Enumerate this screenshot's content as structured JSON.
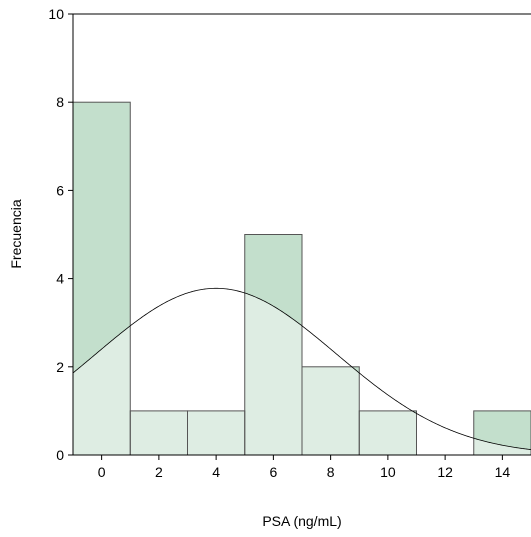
{
  "chart_data": {
    "type": "bar",
    "xlabel": "PSA (ng/mL)",
    "ylabel": "Frecuencia",
    "xlim": [
      -1,
      15
    ],
    "ylim": [
      0,
      10
    ],
    "xticks": [
      0,
      2,
      4,
      6,
      8,
      10,
      12,
      14
    ],
    "yticks": [
      0,
      2,
      4,
      6,
      8,
      10
    ],
    "bins": [
      {
        "start": -1,
        "end": 1,
        "count": 8
      },
      {
        "start": 1,
        "end": 3,
        "count": 1
      },
      {
        "start": 3,
        "end": 5,
        "count": 1
      },
      {
        "start": 5,
        "end": 7,
        "count": 5
      },
      {
        "start": 7,
        "end": 9,
        "count": 2
      },
      {
        "start": 9,
        "end": 11,
        "count": 1
      },
      {
        "start": 11,
        "end": 13,
        "count": 0
      },
      {
        "start": 13,
        "end": 15,
        "count": 1
      }
    ],
    "normal_curve": {
      "mean": 4.0,
      "sd": 4.2,
      "peak": 3.78
    },
    "grid": false,
    "colors": {
      "bar_fill": "#c3dfcc",
      "bar_stroke": "#555555",
      "curve_overlay": "#ffffff",
      "curve_line": "#000000"
    }
  }
}
